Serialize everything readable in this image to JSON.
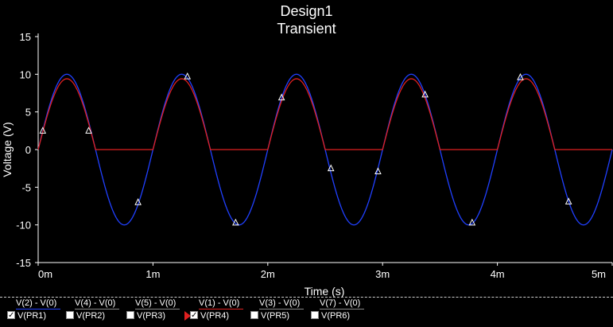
{
  "title": "Design1",
  "subtitle": "Transient",
  "chart_data": {
    "type": "line",
    "title": "Design1",
    "subtitle": "Transient",
    "xlabel": "Time (s)",
    "ylabel": "Voltage (V)",
    "xlim": [
      0,
      5
    ],
    "ylim": [
      -15,
      15
    ],
    "x_ticks": [
      "0m",
      "1m",
      "2m",
      "3m",
      "4m",
      "5m"
    ],
    "y_ticks": [
      "15",
      "10",
      "5",
      "0",
      "-5",
      "-10",
      "-15"
    ],
    "grid": false,
    "series": [
      {
        "name": "V(2) - V(0)",
        "color": "#2040ff",
        "kind": "sine",
        "amplitude": 10,
        "period": 1.0,
        "description_values": [
          0,
          10,
          0,
          -10,
          0
        ]
      },
      {
        "name": "V(1) - V(0)",
        "color": "#e02020",
        "kind": "half-wave-rectified",
        "amplitude": 9.4,
        "period": 1.0
      }
    ],
    "markers": [
      {
        "x": 0.04,
        "y": 2.5
      },
      {
        "x": 0.44,
        "y": 2.5
      },
      {
        "x": 0.87,
        "y": -7.0
      },
      {
        "x": 1.3,
        "y": 9.7
      },
      {
        "x": 1.72,
        "y": -9.7
      },
      {
        "x": 2.12,
        "y": 6.9
      },
      {
        "x": 2.55,
        "y": -2.5
      },
      {
        "x": 2.96,
        "y": -2.9
      },
      {
        "x": 3.37,
        "y": 7.3
      },
      {
        "x": 3.78,
        "y": -9.7
      },
      {
        "x": 4.2,
        "y": 9.6
      },
      {
        "x": 4.62,
        "y": -6.9
      }
    ]
  },
  "legend": {
    "items": [
      {
        "expr": "V(2) - V(0)",
        "name": "V(PR1)",
        "checked": true,
        "color": "#2040ff",
        "marker": false
      },
      {
        "expr": "V(4) - V(0)",
        "name": "V(PR2)",
        "checked": false,
        "color": "#888888",
        "marker": false
      },
      {
        "expr": "V(5) - V(0)",
        "name": "V(PR3)",
        "checked": false,
        "color": "#888888",
        "marker": false
      },
      {
        "expr": "V(1) - V(0)",
        "name": "V(PR4)",
        "checked": true,
        "color": "#e02020",
        "marker": true
      },
      {
        "expr": "V(3) - V(0)",
        "name": "V(PR5)",
        "checked": false,
        "color": "#888888",
        "marker": false
      },
      {
        "expr": "V(7) - V(0)",
        "name": "V(PR6)",
        "checked": false,
        "color": "#888888",
        "marker": false
      }
    ]
  }
}
